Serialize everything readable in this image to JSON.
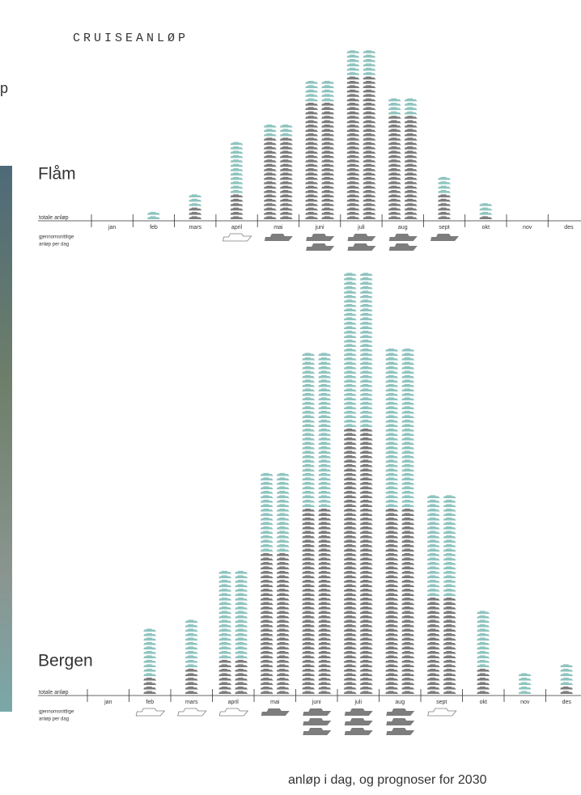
{
  "header": {
    "title": "CRUISEANLØP",
    "fragment": "p"
  },
  "caption": "anløp i dag, og prognoser for 2030",
  "chart_data": [
    {
      "type": "pictogram",
      "title": "Flåm",
      "axis_label": "totale anløp",
      "per_day_label": [
        "gjennomsnittlige",
        "anløp per dag"
      ],
      "categories": [
        "jan",
        "feb",
        "mars",
        "april",
        "mai",
        "juni",
        "juli",
        "aug",
        "sept",
        "okt",
        "nov",
        "des"
      ],
      "series": [
        {
          "color": "#7d7d7d",
          "values": [
            0,
            0,
            3,
            6,
            19,
            27,
            33,
            24,
            6,
            1,
            0,
            0
          ]
        },
        {
          "color": "#8fc4bf",
          "values": [
            0,
            2,
            3,
            12,
            3,
            5,
            6,
            4,
            4,
            3,
            0,
            0
          ]
        }
      ],
      "ships_per_day": [
        0,
        0,
        0,
        1,
        1,
        2,
        2,
        2,
        1,
        0,
        0,
        0
      ]
    },
    {
      "type": "pictogram",
      "title": "Bergen",
      "axis_label": "totale anløp",
      "per_day_label": [
        "gjennomsnittlige",
        "anløp per dag"
      ],
      "categories": [
        "jan",
        "feb",
        "mars",
        "april",
        "mai",
        "juni",
        "juli",
        "aug",
        "sept",
        "okt",
        "nov",
        "des"
      ],
      "series": [
        {
          "color": "#7d7d7d",
          "values": [
            0,
            4,
            6,
            8,
            32,
            42,
            60,
            42,
            22,
            6,
            0,
            2
          ]
        },
        {
          "color": "#8fc4bf",
          "values": [
            0,
            11,
            11,
            20,
            18,
            35,
            35,
            36,
            23,
            13,
            5,
            5
          ]
        }
      ],
      "ships_per_day": [
        0,
        1,
        1,
        1,
        1,
        3,
        3,
        3,
        1,
        0,
        0,
        0
      ]
    }
  ]
}
